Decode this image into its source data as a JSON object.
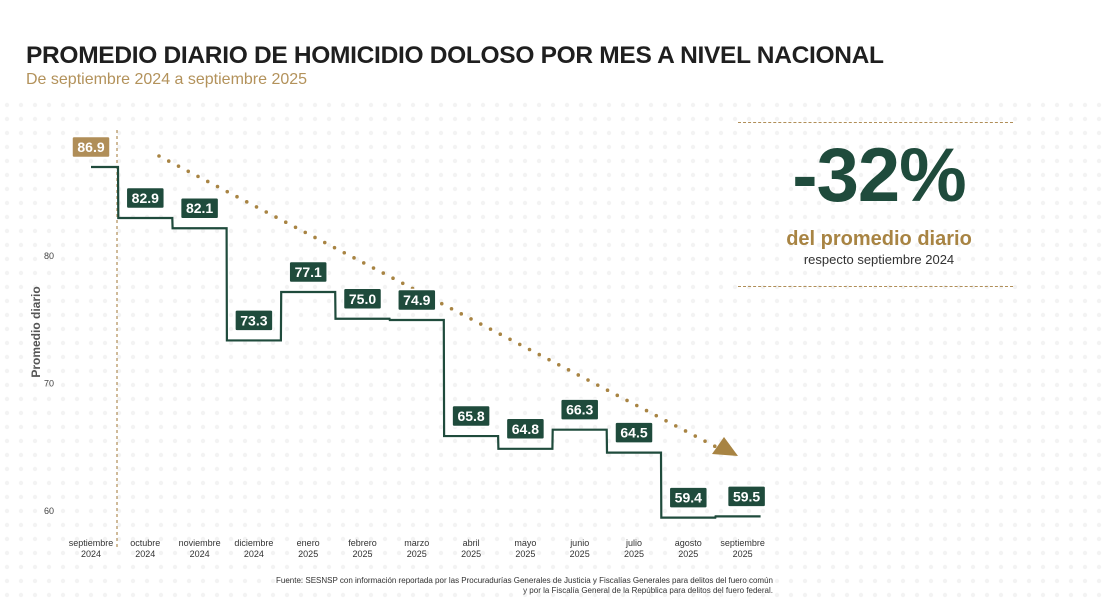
{
  "header": {
    "title": "PROMEDIO DIARIO DE HOMICIDIO DOLOSO POR MES A NIVEL NACIONAL",
    "subtitle": "De septiembre 2024 a septiembre 2025"
  },
  "kpi": {
    "value": "-32%",
    "label": "del promedio diario",
    "sublabel": "respecto septiembre 2024"
  },
  "source": {
    "line1": "Fuente: SESNSP con información reportada por las Procuradurías Generales de Justicia y Fiscalías Generales para delitos del fuero común",
    "line2": "y por la Fiscalía General de la República para delitos del fuero federal."
  },
  "colors": {
    "primary": "#1f4b3c",
    "accent": "#b08e58",
    "baseline_box": "#b08e58",
    "trend": "#a88443"
  },
  "chart_data": {
    "type": "line",
    "step": true,
    "ylabel": "Promedio diario",
    "xlabel": "",
    "ylim": [
      59,
      88
    ],
    "yticks": [
      60,
      70,
      80
    ],
    "grid": false,
    "categories": [
      [
        "septiembre",
        "2024"
      ],
      [
        "octubre",
        "2024"
      ],
      [
        "noviembre",
        "2024"
      ],
      [
        "diciembre",
        "2024"
      ],
      [
        "enero",
        "2025"
      ],
      [
        "febrero",
        "2025"
      ],
      [
        "marzo",
        "2025"
      ],
      [
        "abril",
        "2025"
      ],
      [
        "mayo",
        "2025"
      ],
      [
        "junio",
        "2025"
      ],
      [
        "julio",
        "2025"
      ],
      [
        "agosto",
        "2025"
      ],
      [
        "septiembre",
        "2025"
      ]
    ],
    "values": [
      86.9,
      82.9,
      82.1,
      73.3,
      77.1,
      75.0,
      74.9,
      65.8,
      64.8,
      66.3,
      64.5,
      59.4,
      59.5
    ],
    "labels": [
      "86.9",
      "82.9",
      "82.1",
      "73.3",
      "77.1",
      "75.0",
      "74.9",
      "65.8",
      "64.8",
      "66.3",
      "64.5",
      "59.4",
      "59.5"
    ],
    "baseline_index": 0,
    "trend_arrow": "dotted arrow, downward trend"
  }
}
